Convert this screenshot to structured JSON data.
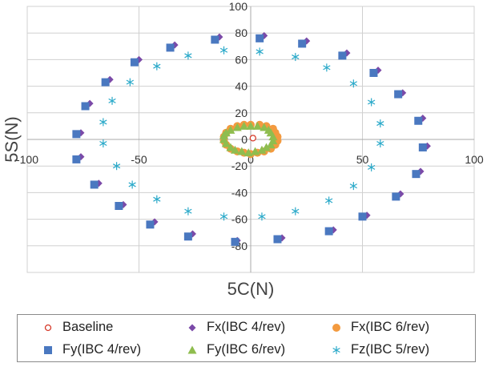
{
  "chart_data": {
    "type": "scatter",
    "title": "",
    "xlabel": "5C(N)",
    "ylabel": "5S(N)",
    "xlim": [
      -100,
      100
    ],
    "ylim": [
      -100,
      100
    ],
    "xticks": [
      -100,
      -50,
      0,
      50,
      100
    ],
    "yticks": [
      -80,
      -60,
      -40,
      -20,
      0,
      20,
      40,
      60,
      80,
      100
    ],
    "grid": true,
    "legend_position": "bottom",
    "series": [
      {
        "name": "Baseline",
        "marker": "circle-open",
        "color": "#d63a2a",
        "points": [
          [
            1,
            1
          ]
        ]
      },
      {
        "name": "Fx(IBC 4/rev)",
        "marker": "diamond",
        "color": "#7b4aa8",
        "points": [
          [
            6,
            78
          ],
          [
            25,
            74
          ],
          [
            43,
            65
          ],
          [
            57,
            52
          ],
          [
            68,
            35
          ],
          [
            77,
            16
          ],
          [
            79,
            -5
          ],
          [
            76,
            -24
          ],
          [
            67,
            -41
          ],
          [
            52,
            -57
          ],
          [
            37,
            -68
          ],
          [
            14,
            -74
          ],
          [
            -6,
            -76
          ],
          [
            -26,
            -71
          ],
          [
            -43,
            -62
          ],
          [
            -57,
            -49
          ],
          [
            -68,
            -33
          ],
          [
            -76,
            -13
          ],
          [
            -76,
            5
          ],
          [
            -72,
            27
          ],
          [
            -63,
            45
          ],
          [
            -50,
            60
          ],
          [
            -34,
            71
          ],
          [
            -14,
            77
          ]
        ]
      },
      {
        "name": "Fy(IBC 4/rev)",
        "marker": "square",
        "color": "#4a78c0",
        "points": [
          [
            4,
            76
          ],
          [
            23,
            72
          ],
          [
            41,
            63
          ],
          [
            55,
            50
          ],
          [
            66,
            34
          ],
          [
            75,
            14
          ],
          [
            77,
            -6
          ],
          [
            74,
            -26
          ],
          [
            65,
            -43
          ],
          [
            50,
            -58
          ],
          [
            35,
            -69
          ],
          [
            12,
            -75
          ],
          [
            -7,
            -77
          ],
          [
            -28,
            -73
          ],
          [
            -45,
            -64
          ],
          [
            -59,
            -50
          ],
          [
            -70,
            -34
          ],
          [
            -78,
            -15
          ],
          [
            -78,
            4
          ],
          [
            -74,
            25
          ],
          [
            -65,
            43
          ],
          [
            -52,
            58
          ],
          [
            -36,
            69
          ],
          [
            -16,
            75
          ]
        ]
      },
      {
        "name": "Fx(IBC 6/rev)",
        "marker": "circle",
        "color": "#f39a3f",
        "points": [
          [
            0,
            11
          ],
          [
            4,
            11
          ],
          [
            7,
            10
          ],
          [
            10,
            8
          ],
          [
            11,
            5
          ],
          [
            12,
            2
          ],
          [
            12,
            -1
          ],
          [
            11,
            -4
          ],
          [
            9,
            -7
          ],
          [
            6,
            -9
          ],
          [
            3,
            -10
          ],
          [
            0,
            -11
          ],
          [
            -3,
            -10
          ],
          [
            -6,
            -9
          ],
          [
            -9,
            -7
          ],
          [
            -11,
            -4
          ],
          [
            -12,
            -1
          ],
          [
            -12,
            2
          ],
          [
            -11,
            5
          ],
          [
            -9,
            8
          ],
          [
            -6,
            10
          ],
          [
            -3,
            11
          ]
        ]
      },
      {
        "name": "Fy(IBC 6/rev)",
        "marker": "triangle",
        "color": "#8fbd4f",
        "points": [
          [
            0,
            10
          ],
          [
            3,
            10
          ],
          [
            6,
            9
          ],
          [
            8,
            7
          ],
          [
            9,
            5
          ],
          [
            10,
            2
          ],
          [
            10,
            -1
          ],
          [
            9,
            -4
          ],
          [
            7,
            -6
          ],
          [
            5,
            -8
          ],
          [
            2,
            -9
          ],
          [
            -1,
            -10
          ],
          [
            -4,
            -9
          ],
          [
            -7,
            -8
          ],
          [
            -9,
            -6
          ],
          [
            -11,
            -3
          ],
          [
            -12,
            0
          ],
          [
            -12,
            3
          ],
          [
            -11,
            5
          ],
          [
            -9,
            7
          ],
          [
            -6,
            9
          ],
          [
            -3,
            10
          ]
        ]
      },
      {
        "name": "Fz(IBC 5/rev)",
        "marker": "asterisk",
        "color": "#2aa9c9",
        "points": [
          [
            4,
            66
          ],
          [
            20,
            62
          ],
          [
            34,
            54
          ],
          [
            46,
            42
          ],
          [
            54,
            28
          ],
          [
            58,
            12
          ],
          [
            58,
            -3
          ],
          [
            54,
            -21
          ],
          [
            46,
            -35
          ],
          [
            35,
            -46
          ],
          [
            20,
            -54
          ],
          [
            5,
            -58
          ],
          [
            -12,
            -58
          ],
          [
            -28,
            -54
          ],
          [
            -42,
            -45
          ],
          [
            -53,
            -34
          ],
          [
            -60,
            -20
          ],
          [
            -66,
            -3
          ],
          [
            -66,
            13
          ],
          [
            -62,
            29
          ],
          [
            -54,
            43
          ],
          [
            -42,
            55
          ],
          [
            -28,
            63
          ],
          [
            -12,
            67
          ]
        ]
      }
    ]
  }
}
